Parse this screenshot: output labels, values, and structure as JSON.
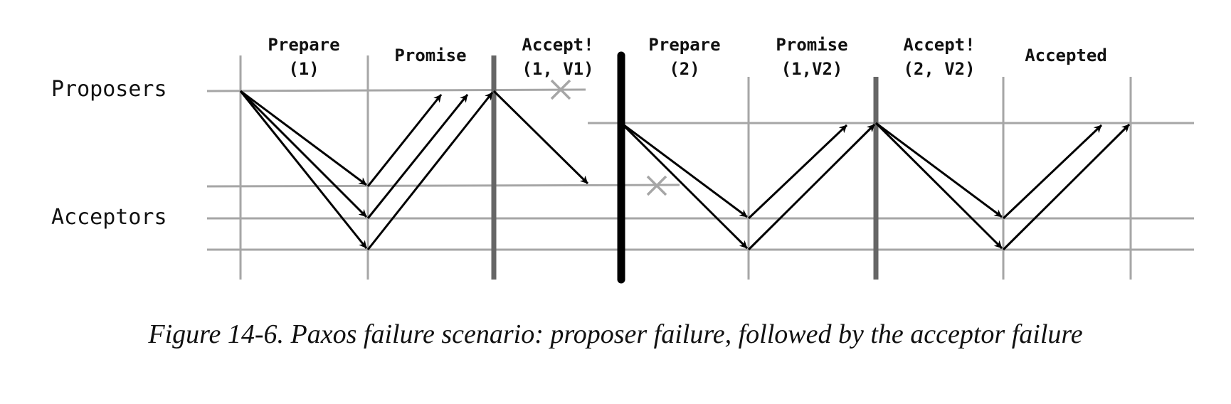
{
  "rows": {
    "proposers": "Proposers",
    "acceptors": "Acceptors"
  },
  "phases": [
    {
      "line1": "Prepare",
      "line2": "(1)"
    },
    {
      "line1": "Promise",
      "line2": ""
    },
    {
      "line1": "Accept!",
      "line2": "(1, V1)"
    },
    {
      "line1": "Prepare",
      "line2": "(2)"
    },
    {
      "line1": "Promise",
      "line2": "(1,V2)"
    },
    {
      "line1": "Accept!",
      "line2": "(2, V2)"
    },
    {
      "line1": "Accepted",
      "line2": ""
    }
  ],
  "caption": "Figure 14-6. Paxos failure scenario: proposer failure, followed by the acceptor failure",
  "colors": {
    "grid": "#a6a6a6",
    "separator": "#666666",
    "separator_strong": "#000000",
    "arrow": "#000000",
    "failure_mark": "#a6a6a6"
  }
}
